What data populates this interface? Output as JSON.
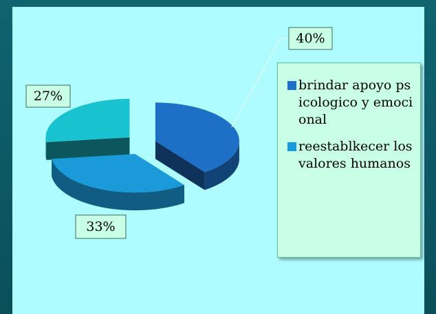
{
  "chart_data": {
    "type": "pie",
    "categories": [
      "brindar apoyo psicologico y emocional",
      "reestablkecer los valores humanos",
      null
    ],
    "values": [
      40,
      33,
      27
    ],
    "value_labels": [
      "40%",
      "33%",
      "27%"
    ],
    "colors": [
      "#1e6fc6",
      "#1a9ad8",
      "#18c2cf"
    ],
    "legend": "right"
  }
}
